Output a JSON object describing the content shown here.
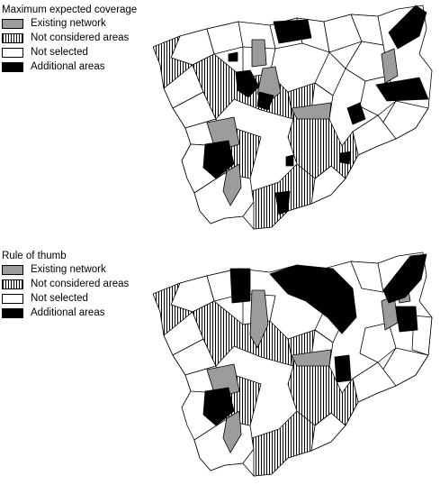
{
  "panels": [
    {
      "title": "Maximum expected coverage",
      "legend": [
        "Existing network",
        "Not considered areas",
        "Not selected",
        "Additional areas"
      ]
    },
    {
      "title": "Rule of thumb",
      "legend": [
        "Existing network",
        "Not considered areas",
        "Not selected",
        "Additional areas"
      ]
    }
  ],
  "colors": {
    "existing_network": "#9c9c9c",
    "not_considered": "hatched",
    "not_selected": "#ffffff",
    "additional": "#000000",
    "border": "#000000"
  }
}
